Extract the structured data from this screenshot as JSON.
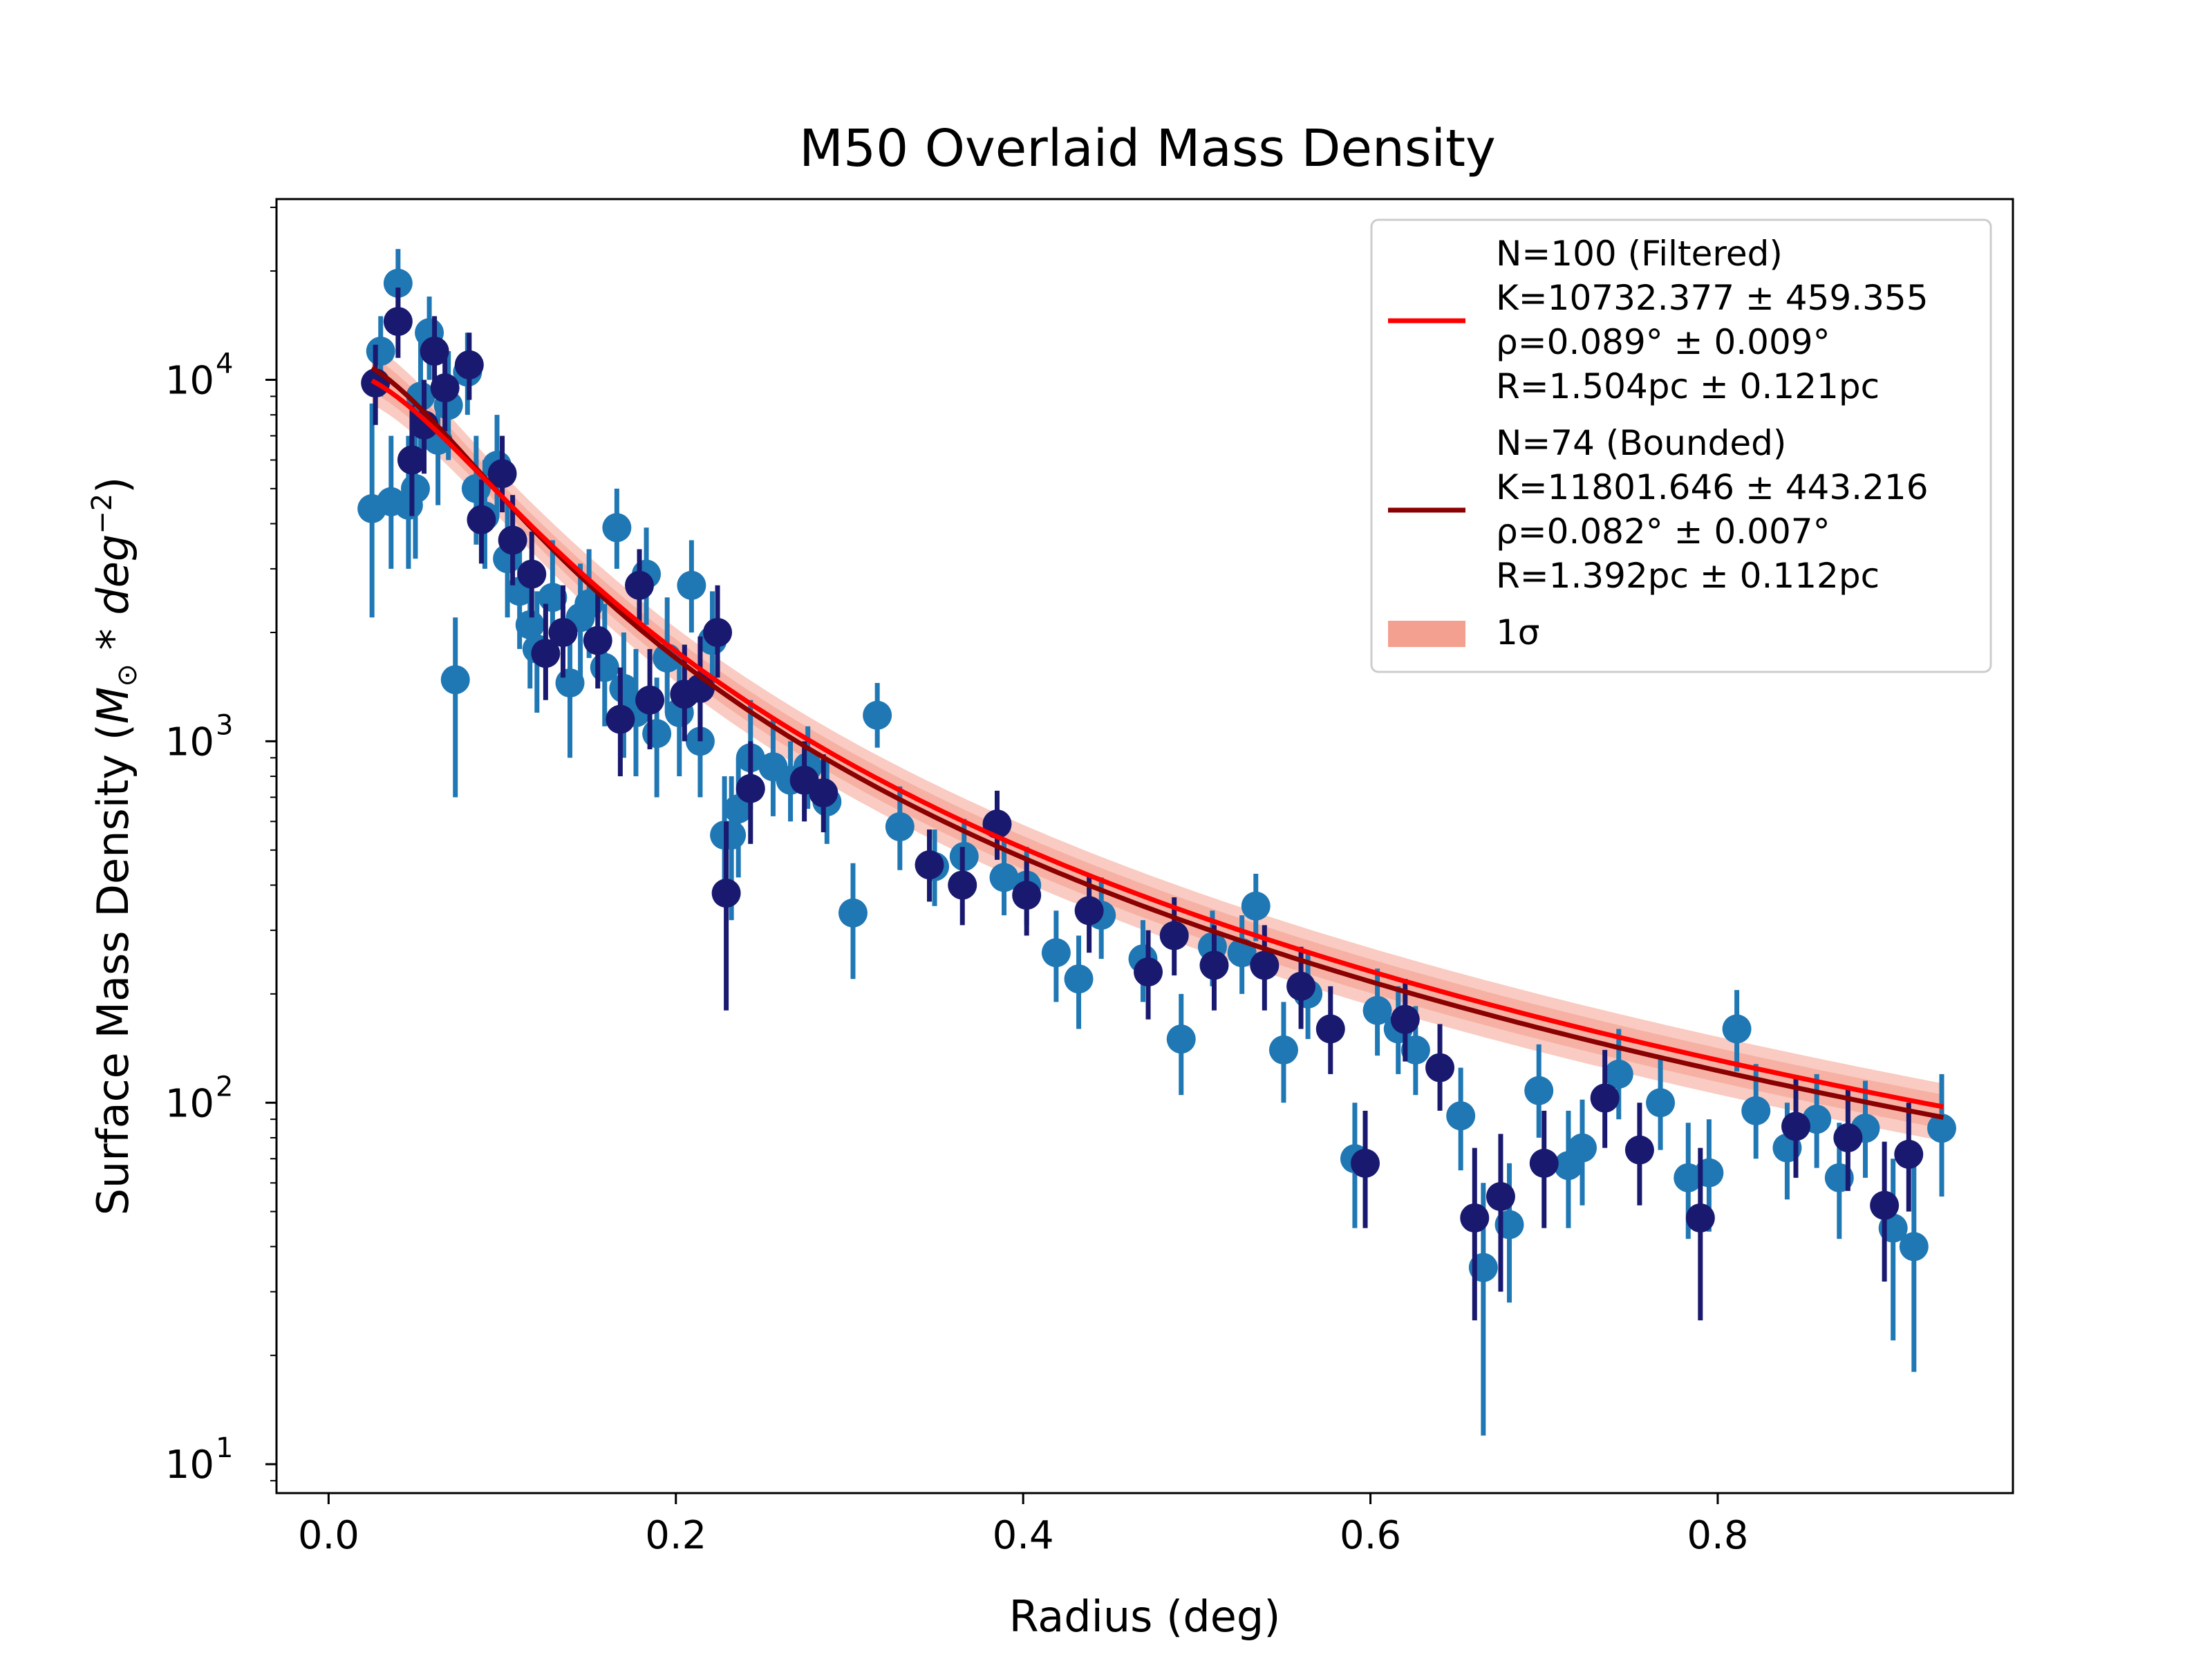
{
  "chart_data": {
    "type": "scatter",
    "title": "M50 Overlaid Mass Density",
    "xlabel": "Radius (deg)",
    "ylabel": "Surface Mass Density (M⊙ * deg⁻²)",
    "xlim": [
      -0.03,
      0.97
    ],
    "ylim_log10": [
      0.92,
      4.5
    ],
    "yscale": "log",
    "x_ticks": [
      0.0,
      0.2,
      0.4,
      0.6,
      0.8
    ],
    "x_tick_labels": [
      "0.0",
      "0.2",
      "0.4",
      "0.6",
      "0.8"
    ],
    "y_ticks": [
      10,
      100,
      1000,
      10000
    ],
    "y_tick_labels": [
      "10",
      "10",
      "10",
      "10"
    ],
    "y_tick_exponents": [
      "1",
      "2",
      "3",
      "4"
    ],
    "grid": false,
    "legend_position": "top-right",
    "legend": [
      {
        "label_lines": [
          "N=100 (Filtered)",
          "K=10732.377 ± 459.355",
          "ρ=0.089° ± 0.009°",
          "R=1.504pc ± 0.121pc"
        ],
        "color": "#ff0000",
        "kind": "line"
      },
      {
        "label_lines": [
          "N=74 (Bounded)",
          "K=11801.646 ± 443.216",
          "ρ=0.082° ± 0.007°",
          "R=1.392pc ± 0.112pc"
        ],
        "color": "#8b0000",
        "kind": "line"
      },
      {
        "label_lines": [
          "1σ"
        ],
        "color": "#f4a090",
        "kind": "band"
      }
    ],
    "colors": {
      "filtered_points": "#1f77b4",
      "bounded_points": "#191970",
      "filtered_fit": "#ff0000",
      "bounded_fit": "#8b0000",
      "band": "#f4a090"
    },
    "series": [
      {
        "name": "N=100 (Filtered)",
        "points": [
          [
            0.025,
            4400,
            2200,
            8600
          ],
          [
            0.03,
            12000,
            9000,
            15000
          ],
          [
            0.036,
            4600,
            3000,
            7000
          ],
          [
            0.04,
            18500,
            14000,
            23000
          ],
          [
            0.046,
            4500,
            3000,
            7000
          ],
          [
            0.05,
            5000,
            3200,
            7800
          ],
          [
            0.053,
            9000,
            6000,
            13000
          ],
          [
            0.058,
            13500,
            10000,
            17000
          ],
          [
            0.063,
            6800,
            4500,
            10000
          ],
          [
            0.069,
            8500,
            6000,
            12000
          ],
          [
            0.073,
            1480,
            700,
            2200
          ],
          [
            0.08,
            10500,
            8000,
            13500
          ],
          [
            0.085,
            5000,
            3500,
            7000
          ],
          [
            0.09,
            4200,
            3000,
            6000
          ],
          [
            0.097,
            5800,
            4200,
            8000
          ],
          [
            0.103,
            3200,
            2200,
            4600
          ],
          [
            0.11,
            2600,
            1800,
            3800
          ],
          [
            0.116,
            2100,
            1400,
            3000
          ],
          [
            0.12,
            1800,
            1200,
            2600
          ],
          [
            0.129,
            2500,
            1700,
            3600
          ],
          [
            0.139,
            1450,
            900,
            2200
          ],
          [
            0.145,
            2200,
            1500,
            3100
          ],
          [
            0.15,
            2400,
            1700,
            3400
          ],
          [
            0.159,
            1600,
            1100,
            2400
          ],
          [
            0.166,
            3900,
            3000,
            5000
          ],
          [
            0.17,
            1400,
            900,
            2000
          ],
          [
            0.177,
            1200,
            800,
            1800
          ],
          [
            0.183,
            2900,
            2100,
            3900
          ],
          [
            0.189,
            1050,
            700,
            1500
          ],
          [
            0.195,
            1700,
            1200,
            2500
          ],
          [
            0.202,
            1200,
            800,
            1700
          ],
          [
            0.209,
            2700,
            2000,
            3600
          ],
          [
            0.214,
            1000,
            700,
            1450
          ],
          [
            0.221,
            1900,
            1400,
            2600
          ],
          [
            0.228,
            550,
            350,
            800
          ],
          [
            0.232,
            550,
            320,
            800
          ],
          [
            0.236,
            650,
            420,
            900
          ],
          [
            0.243,
            900,
            650,
            1300
          ],
          [
            0.256,
            850,
            620,
            1150
          ],
          [
            0.266,
            780,
            600,
            1000
          ],
          [
            0.276,
            850,
            650,
            1100
          ],
          [
            0.287,
            680,
            520,
            880
          ],
          [
            0.302,
            335,
            220,
            460
          ],
          [
            0.316,
            1180,
            960,
            1450
          ],
          [
            0.329,
            580,
            440,
            750
          ],
          [
            0.349,
            450,
            350,
            570
          ],
          [
            0.366,
            480,
            370,
            610
          ],
          [
            0.389,
            420,
            330,
            530
          ],
          [
            0.402,
            400,
            310,
            510
          ],
          [
            0.419,
            260,
            190,
            340
          ],
          [
            0.432,
            220,
            160,
            290
          ],
          [
            0.445,
            330,
            250,
            420
          ],
          [
            0.469,
            250,
            190,
            320
          ],
          [
            0.491,
            150,
            105,
            200
          ],
          [
            0.509,
            270,
            210,
            340
          ],
          [
            0.526,
            260,
            200,
            330
          ],
          [
            0.534,
            350,
            280,
            430
          ],
          [
            0.55,
            140,
            100,
            190
          ],
          [
            0.564,
            200,
            150,
            260
          ],
          [
            0.591,
            70,
            45,
            100
          ],
          [
            0.604,
            180,
            135,
            235
          ],
          [
            0.616,
            160,
            120,
            210
          ],
          [
            0.626,
            140,
            105,
            185
          ],
          [
            0.652,
            92,
            65,
            125
          ],
          [
            0.665,
            35,
            12,
            60
          ],
          [
            0.68,
            46,
            28,
            68
          ],
          [
            0.697,
            108,
            80,
            145
          ],
          [
            0.714,
            67,
            45,
            95
          ],
          [
            0.722,
            75,
            52,
            102
          ],
          [
            0.743,
            120,
            90,
            160
          ],
          [
            0.767,
            100,
            74,
            135
          ],
          [
            0.783,
            62,
            42,
            88
          ],
          [
            0.795,
            64,
            44,
            90
          ],
          [
            0.811,
            160,
            122,
            205
          ],
          [
            0.822,
            95,
            70,
            128
          ],
          [
            0.84,
            75,
            54,
            100
          ],
          [
            0.857,
            90,
            66,
            120
          ],
          [
            0.87,
            62,
            42,
            88
          ],
          [
            0.885,
            85,
            62,
            115
          ],
          [
            0.901,
            45,
            22,
            70
          ],
          [
            0.913,
            40,
            18,
            68
          ],
          [
            0.929,
            85,
            55,
            120
          ]
        ]
      },
      {
        "name": "N=74 (Bounded)",
        "points": [
          [
            0.027,
            9800,
            7500,
            12500
          ],
          [
            0.04,
            14500,
            11500,
            18000
          ],
          [
            0.048,
            6000,
            4200,
            8500
          ],
          [
            0.055,
            7500,
            5500,
            10000
          ],
          [
            0.061,
            12000,
            9500,
            15000
          ],
          [
            0.067,
            9500,
            7200,
            12500
          ],
          [
            0.081,
            11000,
            8800,
            13500
          ],
          [
            0.088,
            4100,
            3100,
            5300
          ],
          [
            0.1,
            5500,
            4300,
            7000
          ],
          [
            0.106,
            3600,
            2700,
            4800
          ],
          [
            0.117,
            2900,
            2200,
            3800
          ],
          [
            0.125,
            1750,
            1300,
            2400
          ],
          [
            0.135,
            2000,
            1500,
            2700
          ],
          [
            0.155,
            1900,
            1400,
            2600
          ],
          [
            0.168,
            1150,
            800,
            1600
          ],
          [
            0.179,
            2700,
            2100,
            3400
          ],
          [
            0.185,
            1300,
            950,
            1800
          ],
          [
            0.205,
            1350,
            1000,
            1850
          ],
          [
            0.214,
            1400,
            1000,
            1950
          ],
          [
            0.224,
            2000,
            1500,
            2700
          ],
          [
            0.229,
            380,
            180,
            600
          ],
          [
            0.243,
            740,
            520,
            1000
          ],
          [
            0.274,
            780,
            600,
            1000
          ],
          [
            0.285,
            720,
            560,
            920
          ],
          [
            0.346,
            455,
            360,
            570
          ],
          [
            0.365,
            400,
            310,
            510
          ],
          [
            0.385,
            590,
            470,
            730
          ],
          [
            0.402,
            375,
            290,
            470
          ],
          [
            0.438,
            340,
            260,
            430
          ],
          [
            0.472,
            230,
            170,
            300
          ],
          [
            0.487,
            290,
            225,
            370
          ],
          [
            0.51,
            240,
            180,
            310
          ],
          [
            0.539,
            240,
            180,
            310
          ],
          [
            0.56,
            210,
            160,
            270
          ],
          [
            0.577,
            160,
            120,
            210
          ],
          [
            0.597,
            68,
            45,
            95
          ],
          [
            0.62,
            170,
            130,
            220
          ],
          [
            0.64,
            125,
            95,
            165
          ],
          [
            0.66,
            48,
            25,
            75
          ],
          [
            0.675,
            55,
            30,
            82
          ],
          [
            0.7,
            68,
            45,
            95
          ],
          [
            0.735,
            103,
            75,
            140
          ],
          [
            0.755,
            74,
            52,
            100
          ],
          [
            0.79,
            48,
            25,
            75
          ],
          [
            0.845,
            86,
            62,
            118
          ],
          [
            0.875,
            80,
            57,
            110
          ],
          [
            0.896,
            52,
            32,
            78
          ],
          [
            0.91,
            72,
            50,
            100
          ]
        ]
      }
    ],
    "fits": [
      {
        "name": "N=100 (Filtered)",
        "K": 10732.377,
        "rho_deg": 0.089
      },
      {
        "name": "N=74 (Bounded)",
        "K": 11801.646,
        "rho_deg": 0.082
      }
    ]
  }
}
